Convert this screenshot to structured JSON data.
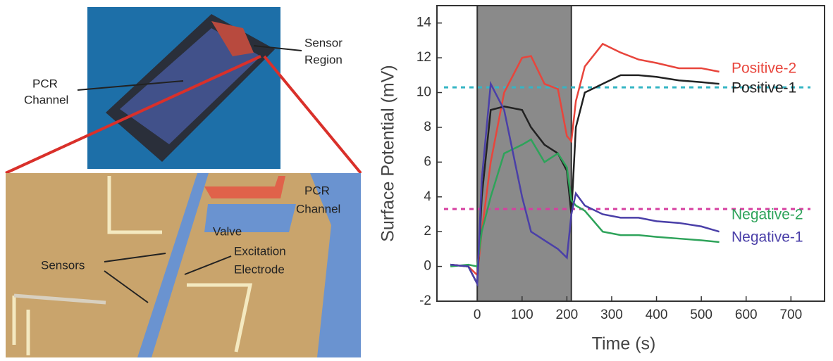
{
  "illustration": {
    "labels": [
      {
        "lines": [
          "Sensor",
          "Region"
        ]
      },
      {
        "lines": [
          "PCR",
          "Channel"
        ]
      },
      {
        "lines": [
          "PCR",
          "Channel"
        ]
      },
      {
        "lines": [
          "Valve"
        ]
      },
      {
        "lines": [
          "Excitation",
          "Electrode"
        ]
      },
      {
        "lines": [
          "Sensors"
        ]
      }
    ]
  },
  "chart_data": {
    "type": "line",
    "x_label": "Time (s)",
    "y_label": "Surface Potential (mV)",
    "x": [
      -60,
      -20,
      0,
      10,
      30,
      60,
      100,
      120,
      150,
      180,
      200,
      210,
      220,
      240,
      280,
      320,
      360,
      400,
      450,
      500,
      540
    ],
    "series": [
      {
        "name": "Positive-2",
        "color": "#e8453c",
        "values": [
          0.1,
          0.0,
          -0.5,
          2,
          6,
          10,
          12,
          12.1,
          10.5,
          10.2,
          7.5,
          7.2,
          9.5,
          11.5,
          12.8,
          12.3,
          11.9,
          11.7,
          11.4,
          11.4,
          11.2
        ]
      },
      {
        "name": "Positive-1",
        "color": "#222222",
        "values": [
          0.1,
          0.0,
          -1,
          4,
          9,
          9.2,
          9,
          8,
          7,
          6.5,
          5.5,
          3,
          8,
          10,
          10.5,
          11,
          11,
          10.9,
          10.7,
          10.6,
          10.5
        ]
      },
      {
        "name": "Negative-2",
        "color": "#2ea35a",
        "values": [
          0.0,
          0.1,
          0,
          2,
          4,
          6.5,
          7,
          7.3,
          6,
          6.5,
          5.7,
          3.8,
          3.5,
          3.2,
          2,
          1.8,
          1.8,
          1.7,
          1.6,
          1.5,
          1.4
        ]
      },
      {
        "name": "Negative-1",
        "color": "#4a3fa8",
        "values": [
          0.1,
          0.0,
          -1,
          5,
          10.5,
          9,
          4,
          2,
          1.5,
          1,
          0.5,
          3,
          4.2,
          3.5,
          3,
          2.8,
          2.8,
          2.6,
          2.5,
          2.3,
          2.0
        ]
      }
    ],
    "reference_lines": [
      {
        "value": 10.3,
        "color": "#35b5c4"
      },
      {
        "value": 3.3,
        "color": "#d63fa0"
      }
    ],
    "shaded_region": [
      0,
      210
    ],
    "xlim": [
      -90,
      775
    ],
    "ylim": [
      -2,
      15
    ],
    "xticks": [
      0,
      100,
      200,
      300,
      400,
      500,
      600,
      700
    ],
    "yticks": [
      -2,
      0,
      2,
      4,
      6,
      8,
      10,
      12,
      14
    ]
  }
}
